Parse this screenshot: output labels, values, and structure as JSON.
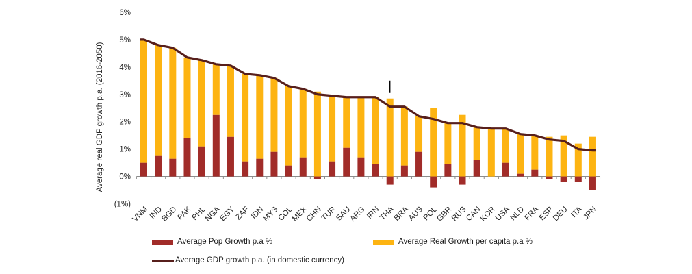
{
  "page": {
    "background": "#ffffff"
  },
  "chart_data": {
    "type": "bar",
    "subtype": "stacked-bar-with-line",
    "title": "",
    "xlabel": "",
    "ylabel": "Average real GDP growth p.a. (2016-2050)",
    "y_ticks": [
      "6%",
      "5%",
      "4%",
      "3%",
      "2%",
      "1%",
      "0%",
      "(1%)"
    ],
    "y_tick_values": [
      6,
      5,
      4,
      3,
      2,
      1,
      0,
      -1
    ],
    "ylim": [
      -1,
      6
    ],
    "grid": false,
    "legend_position": "bottom",
    "stacked": true,
    "categories": [
      "VNM",
      "IND",
      "BGD",
      "PAK",
      "PHL",
      "NGA",
      "EGY",
      "ZAF",
      "IDN",
      "MYS",
      "COL",
      "MEX",
      "CHN",
      "TUR",
      "SAU",
      "ARG",
      "IRN",
      "THA",
      "BRA",
      "AUS",
      "POL",
      "GBR",
      "RUS",
      "CAN",
      "KOR",
      "USA",
      "NLD",
      "FRA",
      "ESP",
      "DEU",
      "ITA",
      "JPN"
    ],
    "series": [
      {
        "name": "Average Pop Growth p.a %",
        "type": "bar",
        "color": "#A12C29",
        "values": [
          0.5,
          0.75,
          0.65,
          1.4,
          1.1,
          2.25,
          1.45,
          0.55,
          0.65,
          0.9,
          0.4,
          0.7,
          -0.1,
          0.55,
          1.05,
          0.7,
          0.45,
          -0.3,
          0.4,
          0.9,
          -0.4,
          0.45,
          -0.3,
          0.6,
          0.0,
          0.5,
          0.1,
          0.25,
          -0.1,
          -0.2,
          -0.2,
          -0.5
        ]
      },
      {
        "name": "Average Real Growth per capita p.a %",
        "type": "bar",
        "color": "#FDB412",
        "values": [
          4.5,
          4.05,
          4.05,
          2.95,
          3.15,
          1.85,
          2.6,
          3.2,
          3.05,
          2.7,
          2.9,
          2.5,
          3.1,
          2.4,
          1.85,
          2.2,
          2.45,
          2.85,
          2.15,
          1.3,
          2.5,
          1.5,
          2.25,
          1.2,
          1.75,
          1.25,
          1.45,
          1.25,
          1.45,
          1.5,
          1.2,
          1.45
        ]
      },
      {
        "name": "Average GDP growth p.a. (in domestic currency)",
        "type": "line",
        "color": "#571F1C",
        "values": [
          5.0,
          4.8,
          4.7,
          4.35,
          4.25,
          4.1,
          4.05,
          3.75,
          3.7,
          3.6,
          3.3,
          3.2,
          3.0,
          2.95,
          2.9,
          2.9,
          2.9,
          2.55,
          2.55,
          2.2,
          2.1,
          1.95,
          1.95,
          1.8,
          1.75,
          1.75,
          1.55,
          1.5,
          1.35,
          1.3,
          1.0,
          0.95
        ]
      }
    ],
    "annotation": {
      "type": "vertical-mark",
      "category": "THA",
      "y_from": 3.5,
      "y_to": 3.05
    },
    "axis_color": "#8c8c8c"
  }
}
